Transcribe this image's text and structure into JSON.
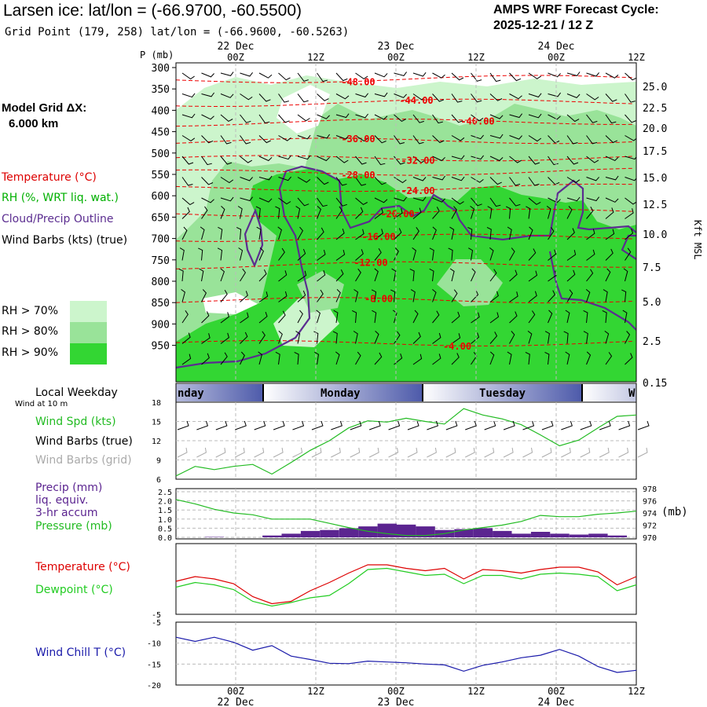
{
  "header": {
    "title": "Larsen ice:  lat/lon = (-66.9700, -60.5500)",
    "subtitle": "Grid Point (179, 258) lat/lon = (-66.9600, -60.5263)",
    "cycle_line1": "AMPS WRF Forecast Cycle:",
    "cycle_line2": "2025-12-21 / 12  Z"
  },
  "left_panel": {
    "grid_label": "Model Grid ΔX:",
    "grid_value": "6.000 km",
    "legend_temperature": "Temperature (°C)",
    "legend_rh": "RH (%, WRT liq. wat.)",
    "legend_cloud": "Cloud/Precip Outline",
    "legend_wind": "Wind Barbs (kts) (true)",
    "rh70": "RH > 70%",
    "rh80": "RH > 80%",
    "rh90": "RH > 90%",
    "local_weekday": "Local Weekday",
    "wind_at_10m": "Wind at 10 m",
    "wind_spd": "Wind Spd (kts)",
    "wind_barbs_true": "Wind Barbs (true)",
    "wind_barbs_grid": "Wind Barbs (grid)",
    "precip1": "Precip (mm)",
    "precip2": "liq. equiv.",
    "precip3": "3-hr accum",
    "pressure": "Pressure (mb)",
    "temperature": "Temperature (°C)",
    "dewpoint": "Dewpoint (°C)",
    "windchill": "Wind Chill T (°C)"
  },
  "colors": {
    "temperature": "#dd0000",
    "rh_label": "#00b000",
    "cloud": "#5b2d90",
    "rh70": "#ccf5cc",
    "rh80": "#99e399",
    "rh90": "#33d633",
    "precip_bar": "#5b2490",
    "pressure": "#22bb22",
    "dewpoint": "#22cc22",
    "windchill": "#1a1aaa",
    "wind_grid": "#aaaaaa"
  },
  "time_axis": {
    "top_dates": [
      "22 Dec",
      "23 Dec",
      "24 Dec"
    ],
    "ticks": [
      "00Z",
      "12Z",
      "00Z",
      "12Z",
      "00Z",
      "12Z"
    ],
    "bottom_dates": [
      "22 Dec",
      "23 Dec",
      "24 Dec"
    ],
    "weekdays": [
      "nday",
      "Monday",
      "Tuesday",
      "W"
    ]
  },
  "chart_data": [
    {
      "type": "heatmap",
      "name": "vertical-profile",
      "p_label": "P (mb)",
      "pressure_levels": [
        300,
        350,
        400,
        450,
        500,
        550,
        600,
        650,
        700,
        750,
        800,
        850,
        900,
        950
      ],
      "height_kft": [
        "25.0",
        "22.5",
        "20.0",
        "17.5",
        "15.0",
        "12.5",
        "10.0",
        "7.5",
        "5.0",
        "2.5",
        "0.15"
      ],
      "height_label": "Kft MSL",
      "isotherms": [
        {
          "label": "-48.00",
          "p": 327
        },
        {
          "label": "-44.00",
          "p": 382
        },
        {
          "label": "-40.00",
          "p": 428
        },
        {
          "label": "-36.00",
          "p": 472
        },
        {
          "label": "-32.00",
          "p": 512
        },
        {
          "label": "-28.00",
          "p": 545
        },
        {
          "label": "-24.00",
          "p": 582
        },
        {
          "label": "-20.00",
          "p": 640
        },
        {
          "label": "-16.00",
          "p": 698
        },
        {
          "label": "-12.00",
          "p": 762
        },
        {
          "label": "-8.00",
          "p": 845
        },
        {
          "label": "-4.00",
          "p": 945
        }
      ]
    },
    {
      "type": "line",
      "name": "wind-speed",
      "y_ticks": [
        "18",
        "15",
        "12",
        "9",
        "6"
      ],
      "ylim": [
        6,
        18
      ],
      "series": [
        {
          "name": "Wind Spd (kts)",
          "values": [
            6.5,
            8.0,
            7.5,
            8.0,
            8.3,
            6.8,
            8.6,
            10.5,
            12.0,
            14.0,
            15.1,
            14.9,
            15.5,
            15.0,
            14.6,
            17.0,
            16.0,
            15.4,
            14.5,
            12.9,
            11.2,
            12.1,
            14.0,
            15.8,
            16.0
          ]
        }
      ]
    },
    {
      "type": "bar",
      "name": "precip-pressure",
      "y_ticks_left": [
        "2.5",
        "2.0",
        "1.5",
        "1.0",
        "0.5",
        "0.0"
      ],
      "y_ticks_right": [
        "978",
        "976",
        "974",
        "972",
        "970"
      ],
      "right_unit": "(mb)",
      "precip": [
        0.0,
        0.0,
        0.02,
        0.0,
        0.0,
        0.1,
        0.2,
        0.35,
        0.4,
        0.5,
        0.6,
        0.75,
        0.7,
        0.6,
        0.4,
        0.45,
        0.5,
        0.35,
        0.2,
        0.3,
        0.2,
        0.15,
        0.2,
        0.1,
        0.0
      ],
      "pressure": [
        976.2,
        975.5,
        974.6,
        974.0,
        973.7,
        973.0,
        973.0,
        973.0,
        972.3,
        971.6,
        971.0,
        970.6,
        970.3,
        970.3,
        970.6,
        971.2,
        971.6,
        972.0,
        972.6,
        973.6,
        973.4,
        973.4,
        973.8,
        974.0,
        974.3
      ]
    },
    {
      "type": "line",
      "name": "temperature-dewpoint",
      "y_ticks": [
        "-5"
      ],
      "ylim": [
        -5,
        1
      ],
      "series": [
        {
          "name": "Temperature (°C)",
          "values": [
            -2.2,
            -1.8,
            -2.0,
            -2.4,
            -3.5,
            -4.1,
            -3.9,
            -3.0,
            -2.3,
            -1.5,
            -0.8,
            -0.8,
            -1.1,
            -1.3,
            -1.1,
            -2.0,
            -1.2,
            -1.3,
            -1.5,
            -1.2,
            -1.0,
            -1.0,
            -1.4,
            -2.5,
            -1.8
          ]
        },
        {
          "name": "Dewpoint (°C)",
          "values": [
            -2.7,
            -2.3,
            -2.5,
            -2.9,
            -3.9,
            -4.3,
            -4.0,
            -3.6,
            -3.4,
            -2.4,
            -1.2,
            -1.1,
            -1.4,
            -1.7,
            -1.6,
            -2.4,
            -1.7,
            -1.7,
            -2.0,
            -1.6,
            -1.5,
            -1.6,
            -1.8,
            -3.0,
            -2.5
          ]
        }
      ]
    },
    {
      "type": "line",
      "name": "wind-chill",
      "y_ticks": [
        "-5",
        "-10",
        "-15",
        "-20"
      ],
      "ylim": [
        -20,
        -5
      ],
      "series": [
        {
          "name": "Wind Chill T (°C)",
          "values": [
            -8.6,
            -9.6,
            -8.6,
            -9.8,
            -11.7,
            -10.6,
            -13.1,
            -13.9,
            -14.8,
            -14.9,
            -14.3,
            -14.5,
            -14.7,
            -15.0,
            -15.2,
            -16.7,
            -15.3,
            -14.5,
            -13.5,
            -12.9,
            -11.5,
            -13.1,
            -15.6,
            -17.0,
            -16.5
          ]
        }
      ]
    }
  ]
}
